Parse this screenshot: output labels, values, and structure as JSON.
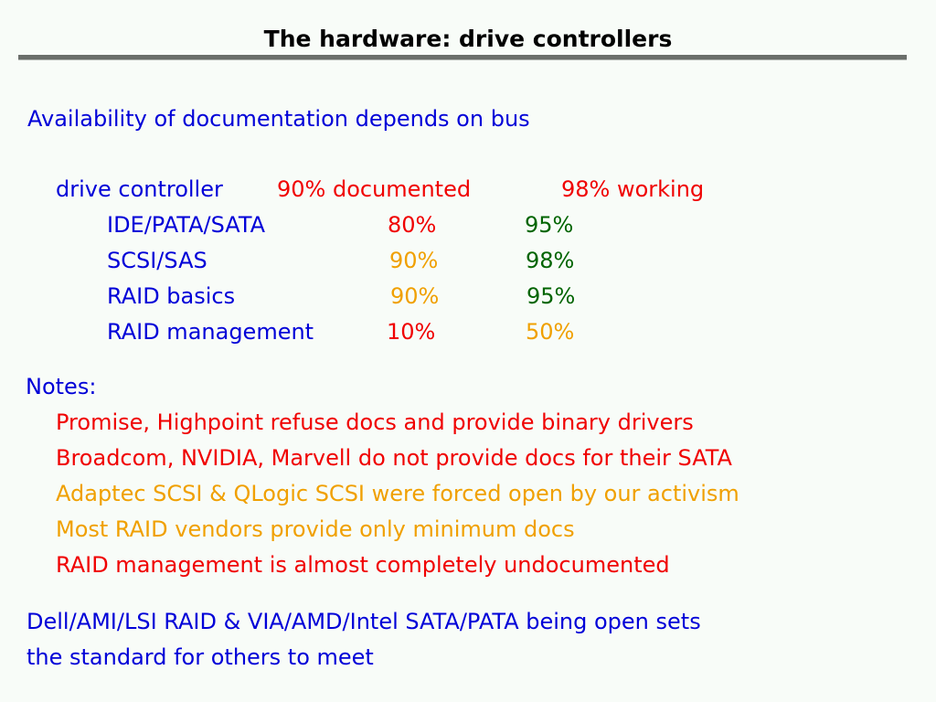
{
  "title": "The hardware: drive controllers",
  "intro": "Availability of documentation depends on bus",
  "summary": {
    "label": "drive controller",
    "documented": "90% documented",
    "working": "98% working"
  },
  "rows": [
    {
      "label": "IDE/PATA/SATA",
      "documented": "80%",
      "working": "95%"
    },
    {
      "label": "SCSI/SAS",
      "documented": "90%",
      "working": "98%"
    },
    {
      "label": "RAID basics",
      "documented": "90%",
      "working": "95%"
    },
    {
      "label": "RAID management",
      "documented": "10%",
      "working": "50%"
    }
  ],
  "notes_heading": "Notes:",
  "notes": [
    "Promise, Highpoint refuse docs and provide binary drivers",
    "Broadcom, NVIDIA, Marvell do not provide docs for their SATA",
    "Adaptec SCSI & QLogic SCSI were forced open by our activism",
    "Most RAID vendors provide only minimum docs",
    "RAID management is almost completely undocumented"
  ],
  "conclusion": [
    "Dell/AMI/LSI RAID & VIA/AMD/Intel SATA/PATA being open sets",
    "the standard for others to meet"
  ],
  "colors": {
    "background": "#f8fcf8",
    "blue": "#0000d8",
    "red": "#f00000",
    "green": "#006400",
    "orange": "#f0a000"
  }
}
